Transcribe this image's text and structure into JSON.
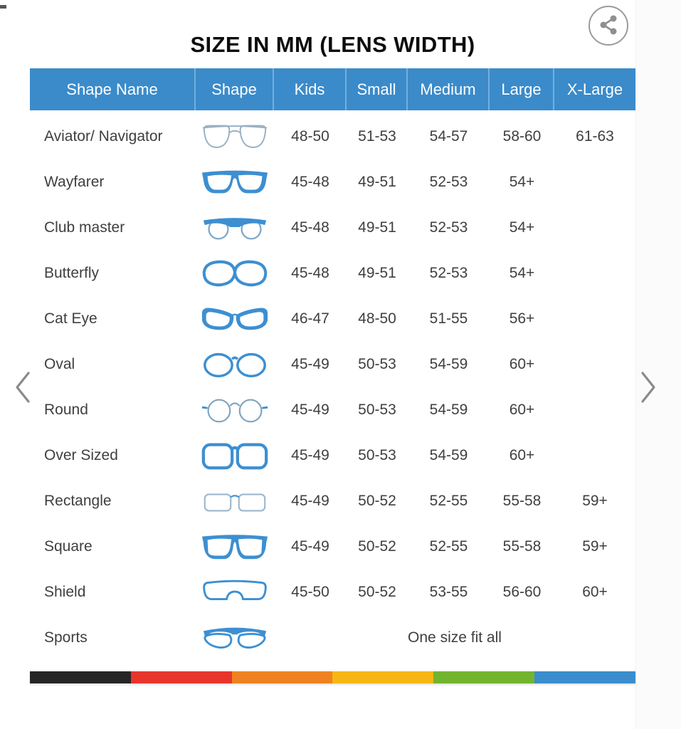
{
  "header": {
    "title": "SIZE IN MM (LENS WIDTH)"
  },
  "carousel": {
    "prev_label": "previous",
    "next_label": "next"
  },
  "table": {
    "columns": [
      "Shape Name",
      "Shape",
      "Kids",
      "Small",
      "Medium",
      "Large",
      "X-Large"
    ],
    "value_keys": [
      "kids",
      "small",
      "medium",
      "large",
      "xlarge"
    ],
    "rows": [
      {
        "name": "Aviator/ Navigator",
        "icon": "aviator-glasses-icon",
        "kids": "48-50",
        "small": "51-53",
        "medium": "54-57",
        "large": "58-60",
        "xlarge": "61-63"
      },
      {
        "name": "Wayfarer",
        "icon": "wayfarer-glasses-icon",
        "kids": "45-48",
        "small": "49-51",
        "medium": "52-53",
        "large": "54+",
        "xlarge": ""
      },
      {
        "name": "Club master",
        "icon": "clubmaster-glasses-icon",
        "kids": "45-48",
        "small": "49-51",
        "medium": "52-53",
        "large": "54+",
        "xlarge": ""
      },
      {
        "name": "Butterfly",
        "icon": "butterfly-glasses-icon",
        "kids": "45-48",
        "small": "49-51",
        "medium": "52-53",
        "large": "54+",
        "xlarge": ""
      },
      {
        "name": "Cat Eye",
        "icon": "cateye-glasses-icon",
        "kids": "46-47",
        "small": "48-50",
        "medium": "51-55",
        "large": "56+",
        "xlarge": ""
      },
      {
        "name": "Oval",
        "icon": "oval-glasses-icon",
        "kids": "45-49",
        "small": "50-53",
        "medium": "54-59",
        "large": "60+",
        "xlarge": ""
      },
      {
        "name": "Round",
        "icon": "round-glasses-icon",
        "kids": "45-49",
        "small": "50-53",
        "medium": "54-59",
        "large": "60+",
        "xlarge": ""
      },
      {
        "name": "Over Sized",
        "icon": "oversized-glasses-icon",
        "kids": "45-49",
        "small": "50-53",
        "medium": "54-59",
        "large": "60+",
        "xlarge": ""
      },
      {
        "name": "Rectangle",
        "icon": "rectangle-glasses-icon",
        "kids": "45-49",
        "small": "50-52",
        "medium": "52-55",
        "large": "55-58",
        "xlarge": "59+"
      },
      {
        "name": "Square",
        "icon": "square-glasses-icon",
        "kids": "45-49",
        "small": "50-52",
        "medium": "52-55",
        "large": "55-58",
        "xlarge": "59+"
      },
      {
        "name": "Shield",
        "icon": "shield-glasses-icon",
        "kids": "45-50",
        "small": "50-52",
        "medium": "53-55",
        "large": "56-60",
        "xlarge": "60+"
      },
      {
        "name": "Sports",
        "icon": "sports-glasses-icon",
        "span_note": "One size fit all"
      }
    ]
  },
  "footer_stripe_colors": [
    "#262626",
    "#e8352c",
    "#ef8220",
    "#f6b716",
    "#73b42e",
    "#3b8dcd"
  ],
  "colors": {
    "header_bg": "#3b8bca",
    "icon_blue": "#3d8fd1",
    "text": "#3f3f3f"
  }
}
